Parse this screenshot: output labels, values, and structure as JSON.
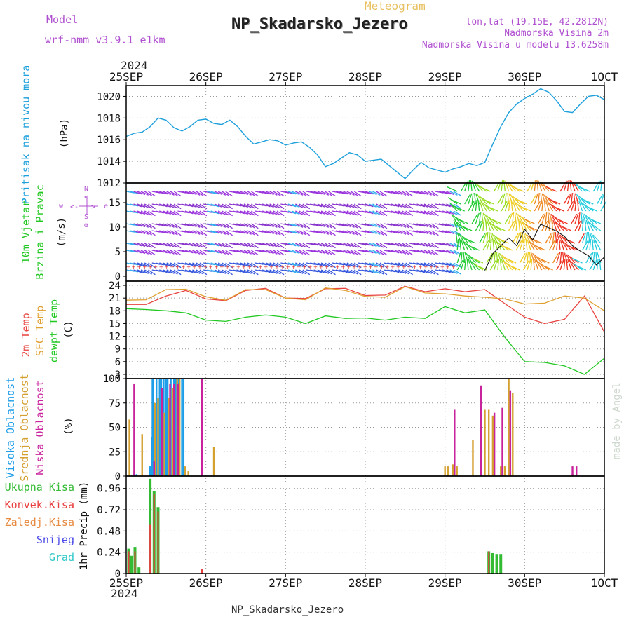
{
  "header": {
    "subtitle": "Meteogram",
    "title": "NP_Skadarsko_Jezero",
    "model_label": "Model",
    "model_value": "wrf-nmm_v3.9.1 e1km",
    "location": "lon,lat (19.15E, 42.2812N)",
    "elevation": "Nadmorska Visina 2m",
    "model_elevation": "Nadmorska Visina u modelu 13.6258m",
    "footer": "NP_Skadarsko_Jezero",
    "credit": "made by Angel",
    "year": "2024"
  },
  "colors": {
    "pressure": "#1ea0dc",
    "temp2m": "#e8433f",
    "sfc": "#e0a030",
    "dew": "#22c822",
    "cloud_high": "#1e9ee8",
    "cloud_mid": "#d4a030",
    "cloud_low": "#c8229c",
    "precip_total": "#33bb33",
    "precip_conv": "#e84040",
    "precip_frozen": "#e88a40",
    "snow": "#4a4ae8",
    "graupel": "#30c8c8",
    "purple": "#b050d0"
  },
  "chart_data": [
    {
      "type": "line",
      "id": "pressure",
      "ylabel": "Pritisak na nivou mora",
      "unit": "(hPa)",
      "x_ticks": [
        "25SEP",
        "26SEP",
        "27SEP",
        "28SEP",
        "29SEP",
        "30SEP",
        "1OCT"
      ],
      "y_ticks": [
        1012,
        1014,
        1016,
        1018,
        1020
      ],
      "ylim": [
        1012,
        1021
      ],
      "grid": true,
      "series": [
        {
          "x": [
            0,
            0.1,
            0.2,
            0.3,
            0.4,
            0.5,
            0.6,
            0.7,
            0.8,
            0.9,
            1.0,
            1.1,
            1.2,
            1.3,
            1.4,
            1.5,
            1.6,
            1.7,
            1.8,
            1.9,
            2.0,
            2.1,
            2.2,
            2.3,
            2.4,
            2.5,
            2.6,
            2.7,
            2.8,
            2.9,
            3.0,
            3.1,
            3.2,
            3.3,
            3.4,
            3.5,
            3.6,
            3.7,
            3.8,
            3.9,
            4.0,
            4.1,
            4.2,
            4.3,
            4.4,
            4.5,
            4.6,
            4.7,
            4.8,
            4.9,
            5.0,
            5.1,
            5.2,
            5.3,
            5.4,
            5.5,
            5.6,
            5.7,
            5.8,
            5.9,
            6.0
          ],
          "y": [
            1016.3,
            1016.6,
            1016.7,
            1017.2,
            1018.0,
            1017.8,
            1017.1,
            1016.8,
            1017.2,
            1017.8,
            1017.9,
            1017.5,
            1017.4,
            1017.8,
            1017.2,
            1016.3,
            1015.6,
            1015.8,
            1016.0,
            1015.9,
            1015.5,
            1015.7,
            1015.8,
            1015.3,
            1014.6,
            1013.5,
            1013.8,
            1014.3,
            1014.8,
            1014.6,
            1014.0,
            1014.1,
            1014.2,
            1013.6,
            1013.0,
            1012.4,
            1013.2,
            1013.9,
            1013.4,
            1013.2,
            1013.0,
            1013.3,
            1013.5,
            1013.8,
            1013.6,
            1013.9,
            1015.6,
            1017.2,
            1018.5,
            1019.3,
            1019.8,
            1020.2,
            1020.7,
            1020.4,
            1019.6,
            1018.6,
            1018.5,
            1019.3,
            1020.0,
            1020.1,
            1019.7
          ]
        }
      ]
    },
    {
      "type": "scatter",
      "id": "wind",
      "ylabel": "10m Vjetar",
      "ylabel2": "Brzina i Pravac",
      "unit": "(m/s)",
      "y_ticks": [
        0,
        5,
        10,
        15
      ],
      "ylim": [
        -1,
        19
      ],
      "legend": [
        "w",
        "<-",
        ">",
        "e",
        "N",
        "<",
        "S",
        "α"
      ],
      "series": [
        {
          "name": "Brzina",
          "x": [
            4.5,
            4.6,
            4.7,
            4.8,
            4.9,
            5.0,
            5.1,
            5.2,
            5.3,
            5.4,
            5.5,
            5.6,
            5.7,
            5.8,
            5.9,
            6.0
          ],
          "y": [
            1.2,
            4.6,
            6.2,
            7.8,
            6.2,
            9.6,
            7.4,
            10.6,
            9.9,
            9.2,
            8.1,
            6.2,
            5.1,
            4.2,
            2.3,
            3.9
          ]
        }
      ]
    },
    {
      "type": "line",
      "id": "temperature",
      "ylabels": [
        "2m Temp",
        "SFC Temp",
        "dewpt Temp"
      ],
      "unit": "(C)",
      "y_ticks": [
        3,
        6,
        9,
        12,
        15,
        18,
        21,
        24
      ],
      "ylim": [
        2,
        25
      ],
      "grid": true,
      "series": [
        {
          "name": "2m Temp",
          "x": [
            0,
            0.25,
            0.5,
            0.75,
            1.0,
            1.25,
            1.5,
            1.75,
            2.0,
            2.25,
            2.5,
            2.75,
            3.0,
            3.25,
            3.5,
            3.75,
            4.0,
            4.25,
            4.5,
            4.75,
            5.0,
            5.25,
            5.5,
            5.75,
            6.0
          ],
          "y": [
            19.5,
            19.5,
            21.5,
            22.8,
            20.8,
            20.4,
            22.8,
            23.3,
            21.0,
            20.9,
            23.2,
            23.3,
            21.6,
            21.7,
            23.8,
            22.5,
            23.2,
            22.5,
            23.0,
            19.7,
            16.5,
            15.0,
            16.0,
            21.5,
            13.0
          ]
        },
        {
          "name": "SFC Temp",
          "x": [
            0,
            0.25,
            0.5,
            0.75,
            1.0,
            1.25,
            1.5,
            1.75,
            2.0,
            2.25,
            2.5,
            2.75,
            3.0,
            3.25,
            3.5,
            3.75,
            4.0,
            4.25,
            4.5,
            4.75,
            5.0,
            5.25,
            5.5,
            5.75,
            6.0
          ],
          "y": [
            20.5,
            20.6,
            23.0,
            23.1,
            21.3,
            20.5,
            23.0,
            23.0,
            21.0,
            20.6,
            23.4,
            22.8,
            21.4,
            21.2,
            23.7,
            22.2,
            22.0,
            21.5,
            21.2,
            20.8,
            19.6,
            19.8,
            21.5,
            21.0,
            18.0
          ]
        },
        {
          "name": "dewpt Temp",
          "x": [
            0,
            0.25,
            0.5,
            0.75,
            1.0,
            1.25,
            1.5,
            1.75,
            2.0,
            2.25,
            2.5,
            2.75,
            3.0,
            3.25,
            3.5,
            3.75,
            4.0,
            4.25,
            4.5,
            4.75,
            5.0,
            5.25,
            5.5,
            5.75,
            6.0
          ],
          "y": [
            18.5,
            18.3,
            18.0,
            17.5,
            15.8,
            15.5,
            16.5,
            17.0,
            16.5,
            15.0,
            16.8,
            16.2,
            16.3,
            15.8,
            16.5,
            16.2,
            19.0,
            17.5,
            18.2,
            11.8,
            6.0,
            5.8,
            5.0,
            3.0,
            6.8
          ]
        }
      ]
    },
    {
      "type": "bar",
      "id": "clouds",
      "ylabels": [
        "Visoka Oblacnost",
        "Srednja Oblacnost",
        "Niska Oblacnost"
      ],
      "unit": "(%)",
      "y_ticks": [
        0,
        25,
        50,
        75,
        100
      ],
      "ylim": [
        0,
        100
      ],
      "grid": true,
      "series": [
        {
          "name": "Visoka Oblacnost",
          "x": [
            0.1,
            0.13,
            0.3,
            0.32,
            0.33,
            0.34,
            0.38,
            0.42,
            0.44,
            0.47,
            0.5,
            0.52,
            0.56,
            0.6,
            0.62,
            0.66,
            0.7,
            0.72
          ],
          "y": [
            5,
            2,
            10,
            40,
            100,
            100,
            100,
            100,
            100,
            100,
            100,
            100,
            100,
            100,
            100,
            100,
            100,
            100
          ]
        },
        {
          "name": "Srednja Oblacnost",
          "x": [
            0.04,
            0.2,
            0.36,
            0.4,
            0.45,
            0.48,
            0.53,
            0.58,
            0.64,
            0.67,
            0.74,
            0.78,
            1.1,
            4.0,
            4.04,
            4.1,
            4.15,
            4.35,
            4.5,
            4.55,
            4.6,
            4.7,
            4.75,
            4.8,
            4.85
          ],
          "y": [
            58,
            43,
            75,
            80,
            80,
            65,
            80,
            90,
            100,
            100,
            10,
            5,
            30,
            10,
            10,
            12,
            10,
            37,
            68,
            68,
            62,
            10,
            10,
            100,
            85
          ]
        },
        {
          "name": "Niska Oblacnost",
          "x": [
            0.1,
            0.35,
            0.45,
            0.55,
            0.6,
            0.65,
            0.95,
            4.12,
            4.45,
            4.62,
            4.72,
            4.82,
            5.6,
            5.6,
            5.65
          ],
          "y": [
            95,
            15,
            90,
            95,
            95,
            95,
            100,
            68,
            93,
            65,
            70,
            88,
            10,
            2,
            10
          ]
        }
      ]
    },
    {
      "type": "bar",
      "id": "precip",
      "ylabels": [
        "Ukupna Kisa",
        "Konvek.Kisa",
        "Zaledj.Kisa",
        "Snijeg",
        "Grad"
      ],
      "ylabel": "1hr Precip (mm)",
      "y_ticks": [
        0,
        0.24,
        0.48,
        0.72,
        0.96
      ],
      "ylim": [
        0,
        1.1
      ],
      "grid": true,
      "series": [
        {
          "name": "Ukupna Kisa",
          "x": [
            0.03,
            0.07,
            0.11,
            0.16,
            0.25,
            0.3,
            0.35,
            0.4,
            0.95,
            4.55,
            4.6,
            4.65,
            4.7
          ],
          "y": [
            0.28,
            0.2,
            0.3,
            0.07,
            0.0,
            1.07,
            0.93,
            0.75,
            0.05,
            0.25,
            0.23,
            0.22,
            0.22
          ]
        },
        {
          "name": "Konvek.Kisa",
          "x": [
            0.03,
            0.11,
            0.3,
            0.35,
            0.4,
            0.95,
            4.55
          ],
          "y": [
            0.25,
            0.25,
            0.55,
            0.9,
            0.7,
            0.05,
            0.25
          ]
        }
      ]
    }
  ]
}
